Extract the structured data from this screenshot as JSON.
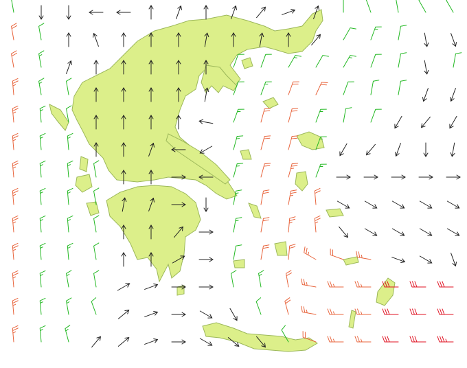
{
  "wind": {
    "color_scale": [
      {
        "min": 0,
        "color": "#222222"
      },
      {
        "min": 10,
        "color": "#22b822"
      },
      {
        "min": 20,
        "color": "#e8643c"
      },
      {
        "min": 30,
        "color": "#e01020"
      }
    ],
    "rows": [
      [
        [
          350,
          12
        ],
        [
          0,
          6
        ],
        [
          0,
          6
        ],
        [
          90,
          5
        ],
        [
          90,
          5
        ],
        [
          180,
          4
        ],
        [
          200,
          4
        ],
        [
          180,
          5
        ],
        [
          200,
          4
        ],
        [
          220,
          5
        ],
        [
          250,
          5
        ],
        [
          200,
          4
        ],
        [
          0,
          12
        ],
        [
          340,
          14
        ],
        [
          350,
          14
        ],
        [
          330,
          12
        ],
        [
          330,
          10
        ]
      ],
      [
        [
          350,
          22
        ],
        [
          350,
          14
        ],
        [
          180,
          5
        ],
        [
          160,
          5
        ],
        [
          180,
          4
        ],
        [
          180,
          4
        ],
        [
          180,
          4
        ],
        [
          190,
          4
        ],
        [
          180,
          5
        ],
        [
          190,
          4
        ],
        [
          180,
          4
        ],
        [
          220,
          6
        ],
        [
          30,
          14
        ],
        [
          20,
          15
        ],
        [
          10,
          14
        ],
        [
          350,
          8
        ],
        [
          340,
          8
        ]
      ],
      [
        [
          350,
          24
        ],
        [
          350,
          15
        ],
        [
          200,
          5
        ],
        [
          180,
          5
        ],
        [
          180,
          4
        ],
        [
          180,
          4
        ],
        [
          180,
          5
        ],
        [
          180,
          5
        ],
        [
          20,
          12
        ],
        [
          20,
          14
        ],
        [
          30,
          15
        ],
        [
          30,
          14
        ],
        [
          30,
          15
        ],
        [
          20,
          14
        ],
        [
          10,
          12
        ],
        [
          350,
          8
        ],
        [
          10,
          12
        ]
      ],
      [
        [
          355,
          25
        ],
        [
          350,
          16
        ],
        [
          350,
          12
        ],
        [
          180,
          5
        ],
        [
          180,
          4
        ],
        [
          180,
          4
        ],
        [
          180,
          5
        ],
        [
          190,
          5
        ],
        [
          20,
          14
        ],
        [
          20,
          15
        ],
        [
          20,
          22
        ],
        [
          25,
          20
        ],
        [
          20,
          14
        ],
        [
          10,
          14
        ],
        [
          10,
          12
        ],
        [
          20,
          8
        ],
        [
          20,
          8
        ]
      ],
      [
        [
          355,
          26
        ],
        [
          355,
          15
        ],
        [
          350,
          14
        ],
        [
          180,
          5
        ],
        [
          180,
          5
        ],
        [
          180,
          5
        ],
        [
          180,
          6
        ],
        [
          100,
          6
        ],
        [
          20,
          15
        ],
        [
          15,
          24
        ],
        [
          15,
          22
        ],
        [
          20,
          16
        ],
        [
          10,
          14
        ],
        [
          20,
          12
        ],
        [
          30,
          6
        ],
        [
          40,
          6
        ],
        [
          30,
          6
        ]
      ],
      [
        [
          355,
          27
        ],
        [
          355,
          16
        ],
        [
          355,
          15
        ],
        [
          180,
          4
        ],
        [
          180,
          5
        ],
        [
          200,
          4
        ],
        [
          90,
          5
        ],
        [
          60,
          8
        ],
        [
          15,
          15
        ],
        [
          15,
          22
        ],
        [
          15,
          24
        ],
        [
          20,
          16
        ],
        [
          30,
          8
        ],
        [
          40,
          6
        ],
        [
          20,
          5
        ],
        [
          0,
          6
        ],
        [
          10,
          5
        ]
      ],
      [
        [
          355,
          27
        ],
        [
          355,
          17
        ],
        [
          355,
          15
        ],
        [
          350,
          12
        ],
        [
          180,
          5
        ],
        [
          180,
          5
        ],
        [
          270,
          5
        ],
        [
          90,
          5
        ],
        [
          15,
          15
        ],
        [
          15,
          22
        ],
        [
          15,
          26
        ],
        [
          20,
          18
        ],
        [
          270,
          6
        ],
        [
          270,
          6
        ],
        [
          270,
          6
        ],
        [
          270,
          6
        ],
        [
          270,
          6
        ]
      ],
      [
        [
          355,
          28
        ],
        [
          355,
          18
        ],
        [
          355,
          16
        ],
        [
          350,
          14
        ],
        [
          190,
          5
        ],
        [
          200,
          4
        ],
        [
          270,
          6
        ],
        [
          0,
          8
        ],
        [
          10,
          15
        ],
        [
          10,
          22
        ],
        [
          10,
          26
        ],
        [
          355,
          24
        ],
        [
          300,
          7
        ],
        [
          300,
          7
        ],
        [
          300,
          6
        ],
        [
          300,
          6
        ],
        [
          300,
          6
        ]
      ],
      [
        [
          355,
          28
        ],
        [
          355,
          18
        ],
        [
          355,
          16
        ],
        [
          350,
          14
        ],
        [
          180,
          5
        ],
        [
          180,
          5
        ],
        [
          220,
          5
        ],
        [
          270,
          6
        ],
        [
          10,
          15
        ],
        [
          10,
          22
        ],
        [
          5,
          25
        ],
        [
          355,
          25
        ],
        [
          320,
          8
        ],
        [
          300,
          6
        ],
        [
          300,
          6
        ],
        [
          300,
          6
        ],
        [
          300,
          6
        ]
      ],
      [
        [
          355,
          27
        ],
        [
          355,
          18
        ],
        [
          355,
          16
        ],
        [
          350,
          14
        ],
        [
          180,
          5
        ],
        [
          180,
          6
        ],
        [
          240,
          6
        ],
        [
          270,
          6
        ],
        [
          10,
          14
        ],
        [
          10,
          20
        ],
        [
          5,
          24
        ],
        [
          300,
          26
        ],
        [
          290,
          24
        ],
        [
          280,
          26
        ],
        [
          290,
          8
        ],
        [
          300,
          6
        ],
        [
          340,
          6
        ]
      ],
      [
        [
          355,
          27
        ],
        [
          355,
          18
        ],
        [
          350,
          16
        ],
        [
          350,
          14
        ],
        [
          240,
          6
        ],
        [
          250,
          6
        ],
        [
          270,
          6
        ],
        [
          270,
          6
        ],
        [
          350,
          12
        ],
        [
          350,
          18
        ],
        [
          350,
          22
        ],
        [
          280,
          26
        ],
        [
          270,
          28
        ],
        [
          270,
          28
        ],
        [
          270,
          30
        ],
        [
          270,
          30
        ],
        [
          270,
          32
        ]
      ],
      [
        [
          355,
          26
        ],
        [
          355,
          17
        ],
        [
          350,
          15
        ],
        [
          340,
          12
        ],
        [
          230,
          6
        ],
        [
          250,
          6
        ],
        [
          270,
          6
        ],
        [
          300,
          6
        ],
        [
          330,
          8
        ],
        [
          340,
          14
        ],
        [
          345,
          20
        ],
        [
          280,
          26
        ],
        [
          270,
          28
        ],
        [
          270,
          28
        ],
        [
          270,
          30
        ],
        [
          270,
          30
        ],
        [
          270,
          34
        ]
      ],
      [
        [
          355,
          25
        ],
        [
          355,
          16
        ],
        [
          345,
          15
        ],
        [
          220,
          6
        ],
        [
          230,
          6
        ],
        [
          250,
          6
        ],
        [
          270,
          5
        ],
        [
          300,
          6
        ],
        [
          310,
          6
        ],
        [
          320,
          8
        ],
        [
          330,
          12
        ],
        [
          290,
          24
        ],
        [
          270,
          28
        ],
        [
          270,
          28
        ],
        [
          270,
          30
        ],
        [
          270,
          32
        ],
        [
          270,
          35
        ]
      ]
    ]
  }
}
